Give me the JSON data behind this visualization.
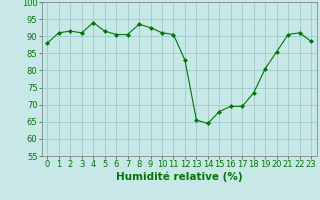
{
  "x": [
    0,
    1,
    2,
    3,
    4,
    5,
    6,
    7,
    8,
    9,
    10,
    11,
    12,
    13,
    14,
    15,
    16,
    17,
    18,
    19,
    20,
    21,
    22,
    23
  ],
  "y": [
    88,
    91,
    91.5,
    91,
    94,
    91.5,
    90.5,
    90.5,
    93.5,
    92.5,
    91,
    90.5,
    83,
    65.5,
    64.5,
    68,
    69.5,
    69.5,
    73.5,
    80.5,
    85.5,
    90.5,
    91,
    88.5
  ],
  "line_color": "#007700",
  "marker": "D",
  "marker_size": 2.0,
  "bg_color": "#c8e8e8",
  "grid_color": "#99cccc",
  "xlabel": "Humidité relative (%)",
  "xlabel_color": "#007700",
  "xlabel_fontsize": 7.5,
  "ylim": [
    55,
    100
  ],
  "xlim": [
    -0.5,
    23.5
  ],
  "yticks": [
    55,
    60,
    65,
    70,
    75,
    80,
    85,
    90,
    95,
    100
  ],
  "xticks": [
    0,
    1,
    2,
    3,
    4,
    5,
    6,
    7,
    8,
    9,
    10,
    11,
    12,
    13,
    14,
    15,
    16,
    17,
    18,
    19,
    20,
    21,
    22,
    23
  ],
  "tick_fontsize": 6,
  "axis_color": "#007700"
}
